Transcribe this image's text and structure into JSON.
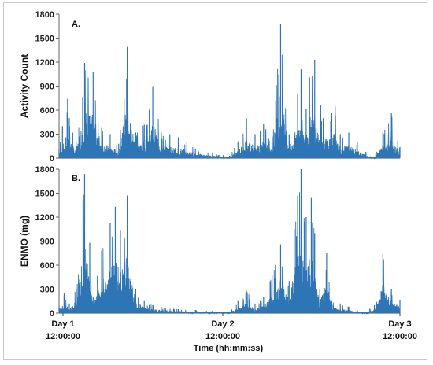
{
  "chart_data": [
    {
      "type": "line",
      "panel_label": "A.",
      "ylabel": "Activity Count",
      "ylim": [
        0,
        1800
      ],
      "yticks": [
        "0",
        "300",
        "600",
        "900",
        "1200",
        "1500",
        "1800"
      ],
      "color": "#2e75b6",
      "series": [
        {
          "x": [
            0,
            0.02,
            0.04,
            0.05,
            0.06,
            0.08,
            0.1,
            0.15,
            0.2,
            0.25,
            0.3,
            0.35,
            0.4,
            0.45,
            0.5,
            0.55,
            0.6,
            0.65,
            0.7,
            0.75,
            0.8,
            0.9,
            1.0,
            1.05,
            1.1,
            1.15,
            1.2,
            1.25,
            1.3,
            1.35,
            1.4,
            1.42,
            1.45,
            1.47,
            1.5,
            1.55,
            1.6,
            1.62,
            1.65,
            1.7,
            1.75,
            1.8,
            1.85,
            1.9,
            1.95,
            2.0
          ],
          "y": [
            120,
            400,
            260,
            740,
            500,
            320,
            200,
            1190,
            1080,
            380,
            300,
            180,
            1390,
            320,
            420,
            900,
            320,
            300,
            260,
            200,
            120,
            60,
            30,
            210,
            500,
            300,
            430,
            250,
            1680,
            300,
            810,
            1110,
            620,
            1010,
            1230,
            500,
            560,
            650,
            300,
            320,
            200,
            80,
            20,
            330,
            560,
            140
          ]
        }
      ],
      "x_domain": [
        0,
        2
      ]
    },
    {
      "type": "line",
      "panel_label": "B.",
      "ylabel": "ENMO (mg)",
      "ylim": [
        0,
        1800
      ],
      "yticks": [
        "0",
        "300",
        "600",
        "900",
        "1200",
        "1500",
        "1800"
      ],
      "color": "#2e75b6",
      "series": [
        {
          "x": [
            0,
            0.03,
            0.06,
            0.1,
            0.15,
            0.18,
            0.2,
            0.25,
            0.3,
            0.33,
            0.36,
            0.4,
            0.45,
            0.5,
            0.55,
            0.6,
            0.7,
            0.8,
            0.9,
            1.0,
            1.05,
            1.1,
            1.15,
            1.2,
            1.25,
            1.3,
            1.35,
            1.38,
            1.4,
            1.42,
            1.45,
            1.48,
            1.5,
            1.53,
            1.57,
            1.6,
            1.65,
            1.7,
            1.75,
            1.8,
            1.85,
            1.9,
            1.95,
            2.0
          ],
          "y": [
            100,
            250,
            120,
            300,
            1740,
            880,
            200,
            780,
            1130,
            1330,
            1030,
            1470,
            300,
            150,
            100,
            80,
            50,
            40,
            30,
            20,
            150,
            280,
            120,
            200,
            480,
            860,
            400,
            1050,
            1470,
            1800,
            1200,
            1440,
            1000,
            300,
            750,
            150,
            120,
            80,
            40,
            20,
            100,
            740,
            300,
            160
          ]
        }
      ],
      "x_domain": [
        0,
        2
      ]
    }
  ],
  "x_axis": {
    "label": "Time (hh:mm:ss)",
    "ticks": [
      {
        "day": "Day 1",
        "time": "12:00:00"
      },
      {
        "day": "Day 2",
        "time": "12:00:00"
      },
      {
        "day": "Day 3",
        "time": "12:00:00"
      }
    ]
  }
}
